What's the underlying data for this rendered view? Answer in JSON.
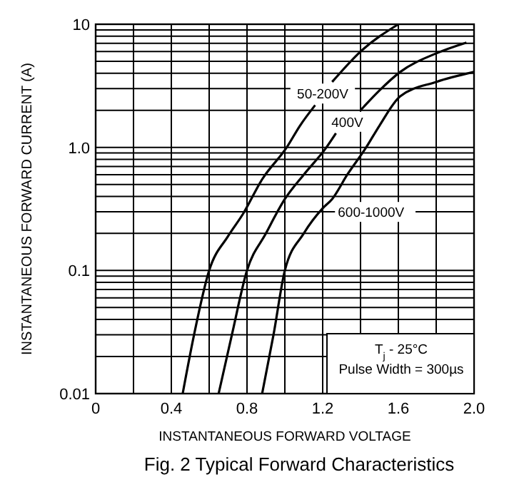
{
  "chart_data": {
    "type": "line",
    "title": "Fig. 2  Typical Forward Characteristics",
    "xlabel": "INSTANTANEOUS FORWARD VOLTAGE",
    "ylabel": "INSTANTANEOUS FORWARD CURRENT (A)",
    "log": "y",
    "grid": true,
    "marker": "none",
    "line_style": "solid",
    "xlim": [
      0,
      2
    ],
    "ylim": [
      0.01,
      10
    ],
    "xticks": [
      0,
      {
        "value": 0.2,
        "label": null
      },
      0.4,
      {
        "value": 0.6,
        "label": null
      },
      0.8,
      {
        "value": 1,
        "label": null
      },
      1.2,
      {
        "value": 1.4,
        "label": null
      },
      1.6,
      {
        "value": 1.8,
        "label": null
      },
      {
        "value": 2,
        "label": "2.0"
      }
    ],
    "yticks": [
      0.01,
      {
        "value": 0.02,
        "label": null
      },
      {
        "value": 0.03,
        "label": null
      },
      {
        "value": 0.04,
        "label": null
      },
      {
        "value": 0.05,
        "label": null
      },
      {
        "value": 0.06,
        "label": null
      },
      {
        "value": 0.07,
        "label": null
      },
      {
        "value": 0.08,
        "label": null
      },
      {
        "value": 0.09,
        "label": null
      },
      0.1,
      {
        "value": 0.2,
        "label": null
      },
      {
        "value": 0.3,
        "label": null
      },
      {
        "value": 0.4,
        "label": null
      },
      {
        "value": 0.5,
        "label": null
      },
      {
        "value": 0.6,
        "label": null
      },
      {
        "value": 0.7,
        "label": null
      },
      {
        "value": 0.8,
        "label": null
      },
      {
        "value": 0.9,
        "label": null
      },
      {
        "value": 1,
        "label": "1.0"
      },
      {
        "value": 2,
        "label": null
      },
      {
        "value": 3,
        "label": null
      },
      {
        "value": 4,
        "label": null
      },
      {
        "value": 5,
        "label": null
      },
      {
        "value": 6,
        "label": null
      },
      {
        "value": 7,
        "label": null
      },
      {
        "value": 8,
        "label": null
      },
      {
        "value": 9,
        "label": null
      },
      10
    ],
    "series": [
      {
        "name": "50-200V",
        "color": "#000000",
        "x": [
          0.46,
          0.52,
          0.6,
          0.7,
          0.78,
          0.88,
          1.01,
          1.08,
          1.16,
          1.2,
          1.25,
          1.4,
          1.6
        ],
        "values": [
          0.01,
          0.03,
          0.1,
          0.19,
          0.29,
          0.55,
          1.0,
          1.5,
          2.2,
          null,
          3.4,
          6,
          10
        ]
      },
      {
        "name": "400V",
        "color": "#000000",
        "x": [
          0.65,
          0.72,
          0.8,
          0.9,
          1.0,
          1.1,
          1.22,
          1.27,
          1.33,
          1.4,
          1.5,
          1.61,
          1.8,
          1.96
        ],
        "values": [
          0.01,
          0.03,
          0.1,
          0.2,
          0.38,
          0.6,
          1.0,
          1.3,
          null,
          2.0,
          2.9,
          4.1,
          5.8,
          7.1
        ]
      },
      {
        "name": "600-1000V",
        "color": "#000000",
        "x": [
          0.88,
          0.94,
          1.0,
          1.1,
          1.2,
          1.25,
          1.33,
          1.43,
          1.5,
          1.61,
          1.8,
          2.0
        ],
        "values": [
          0.01,
          0.03,
          0.1,
          0.2,
          0.32,
          0.38,
          0.6,
          1.0,
          1.5,
          2.6,
          3.4,
          4.1
        ]
      }
    ],
    "annotations": [
      "T$_{j}$ - 25°C",
      "Pulse Width = 300µs"
    ]
  }
}
